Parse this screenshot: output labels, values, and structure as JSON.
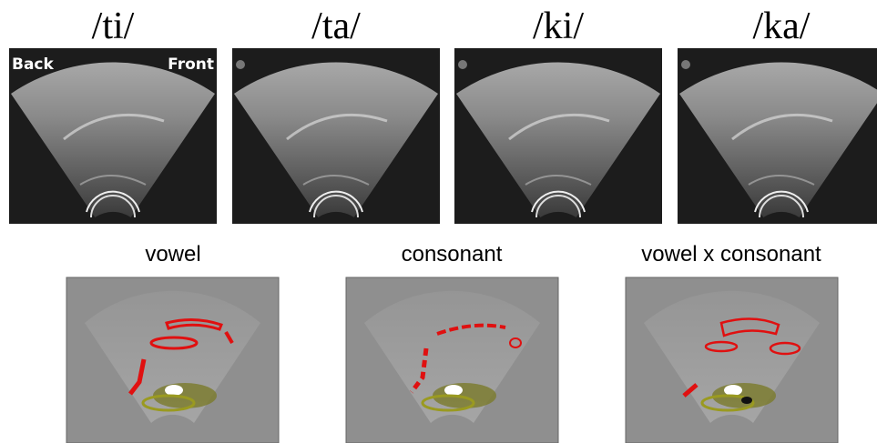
{
  "top_panels": [
    {
      "label": "/ti/"
    },
    {
      "label": "/ta/"
    },
    {
      "label": "/ki/"
    },
    {
      "label": "/ka/"
    }
  ],
  "orientation": {
    "back": "Back",
    "front": "Front"
  },
  "bottom_panels": [
    {
      "label": "vowel"
    },
    {
      "label": "consonant"
    },
    {
      "label": "vowel x consonant"
    }
  ]
}
